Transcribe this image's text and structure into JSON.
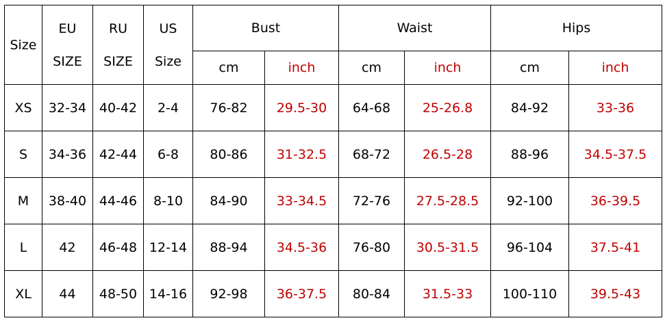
{
  "header": {
    "size": "Size",
    "eu": [
      "EU",
      "SIZE"
    ],
    "ru": [
      "RU",
      "SIZE"
    ],
    "us": [
      "US",
      "Size"
    ],
    "groups": [
      "Bust",
      "Waist",
      "Hips"
    ],
    "units": [
      "cm",
      "inch",
      "cm",
      "inch",
      "cm",
      "inch"
    ]
  },
  "colors": {
    "inch_text": "#c00000",
    "text": "#000000",
    "border": "#000000"
  },
  "rows": [
    [
      "XS",
      "32-34",
      "40-42",
      "2-4",
      "76-82",
      "29.5-30",
      "64-68",
      "25-26.8",
      "84-92",
      "33-36"
    ],
    [
      "S",
      "34-36",
      "42-44",
      "6-8",
      "80-86",
      "31-32.5",
      "68-72",
      "26.5-28",
      "88-96",
      "34.5-37.5"
    ],
    [
      "M",
      "38-40",
      "44-46",
      "8-10",
      "84-90",
      "33-34.5",
      "72-76",
      "27.5-28.5",
      "92-100",
      "36-39.5"
    ],
    [
      "L",
      "42",
      "46-48",
      "12-14",
      "88-94",
      "34.5-36",
      "76-80",
      "30.5-31.5",
      "96-104",
      "37.5-41"
    ],
    [
      "XL",
      "44",
      "48-50",
      "14-16",
      "92-98",
      "36-37.5",
      "80-84",
      "31.5-33",
      "100-110",
      "39.5-43"
    ]
  ]
}
